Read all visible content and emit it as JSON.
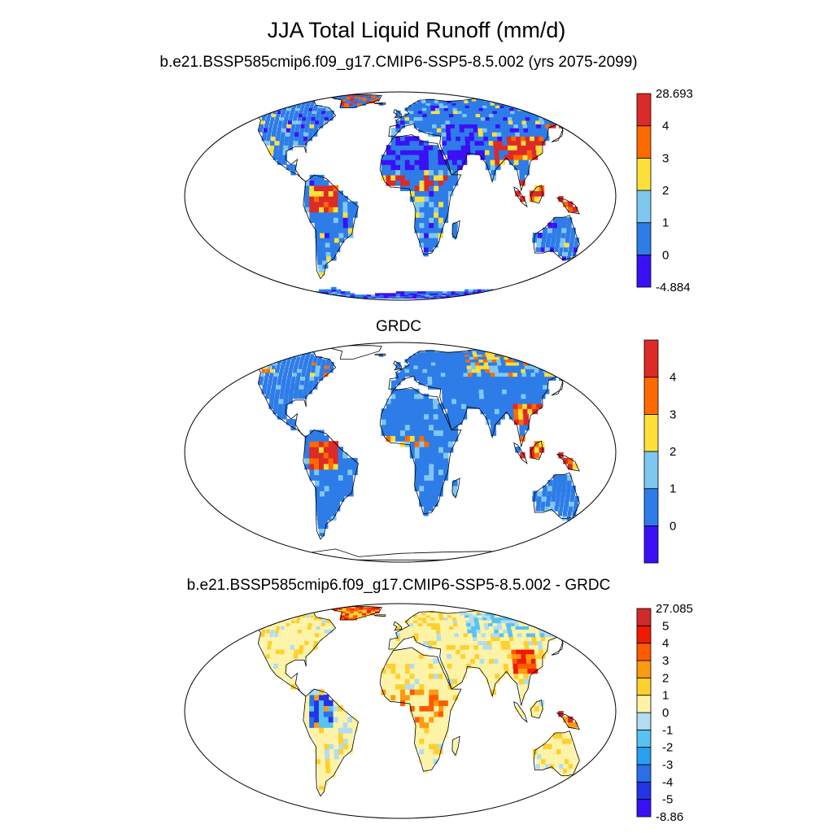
{
  "figure": {
    "title": "JJA Total Liquid Runoff (mm/d)"
  },
  "panels": [
    {
      "title": "b.e21.BSSP585cmip6.f09_g17.CMIP6-SSP5-8.5.002 (yrs 2075-2099)",
      "colorbar": {
        "colors": [
          "#3b10f6",
          "#2d7ce8",
          "#7ec8f0",
          "#fde03a",
          "#fe6a00",
          "#dc2a26"
        ],
        "labels": [
          "-4.884",
          "0",
          "1",
          "2",
          "3",
          "4",
          "28.693"
        ]
      }
    },
    {
      "title": "GRDC",
      "colorbar": {
        "colors": [
          "#3b10f6",
          "#2d7ce8",
          "#7ec8f0",
          "#fde03a",
          "#fe6a00",
          "#dc2a26"
        ],
        "labels": [
          "",
          "0",
          "1",
          "2",
          "3",
          "4",
          ""
        ]
      }
    },
    {
      "title": "b.e21.BSSP585cmip6.f09_g17.CMIP6-SSP5-8.5.002 - GRDC",
      "colorbar": {
        "colors": [
          "#3b10f6",
          "#2233e8",
          "#2a6fe8",
          "#28a0f0",
          "#58c2f0",
          "#b2dcf0",
          "#fdf3a6",
          "#fed02e",
          "#fe9a10",
          "#fe5a00",
          "#ef1a00",
          "#d02a2a"
        ],
        "labels": [
          "-8.86",
          "-5",
          "-4",
          "-3",
          "-2",
          "-1",
          "0",
          "1",
          "2",
          "3",
          "4",
          "5",
          "27.085"
        ]
      }
    }
  ]
}
